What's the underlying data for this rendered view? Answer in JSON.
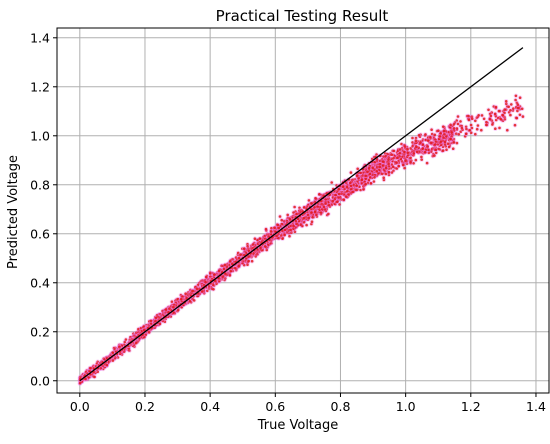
{
  "chart_data": {
    "type": "scatter",
    "title": "Practical Testing Result",
    "xlabel": "True Voltage",
    "ylabel": "Predicted Voltage",
    "xlim": [
      -0.07,
      1.44
    ],
    "ylim": [
      -0.05,
      1.44
    ],
    "xticks": [
      "0.0",
      "0.2",
      "0.4",
      "0.6",
      "0.8",
      "1.0",
      "1.2",
      "1.4"
    ],
    "yticks": [
      "0.0",
      "0.2",
      "0.4",
      "0.6",
      "0.8",
      "1.0",
      "1.2",
      "1.4"
    ],
    "grid": true,
    "reference_line": {
      "x": [
        0.0,
        1.36
      ],
      "y": [
        0.0,
        1.36
      ],
      "color": "#000000"
    },
    "point_color": "#e21818",
    "halo_color": "#ee80ee",
    "scatter_trend": {
      "x": [
        0.0,
        0.1,
        0.2,
        0.3,
        0.4,
        0.5,
        0.6,
        0.7,
        0.8,
        0.9,
        1.0,
        1.1,
        1.2,
        1.3,
        1.36
      ],
      "y": [
        0.0,
        0.1,
        0.205,
        0.31,
        0.405,
        0.5,
        0.6,
        0.685,
        0.77,
        0.86,
        0.92,
        0.98,
        1.05,
        1.09,
        1.12
      ]
    },
    "point_count": 3000
  }
}
